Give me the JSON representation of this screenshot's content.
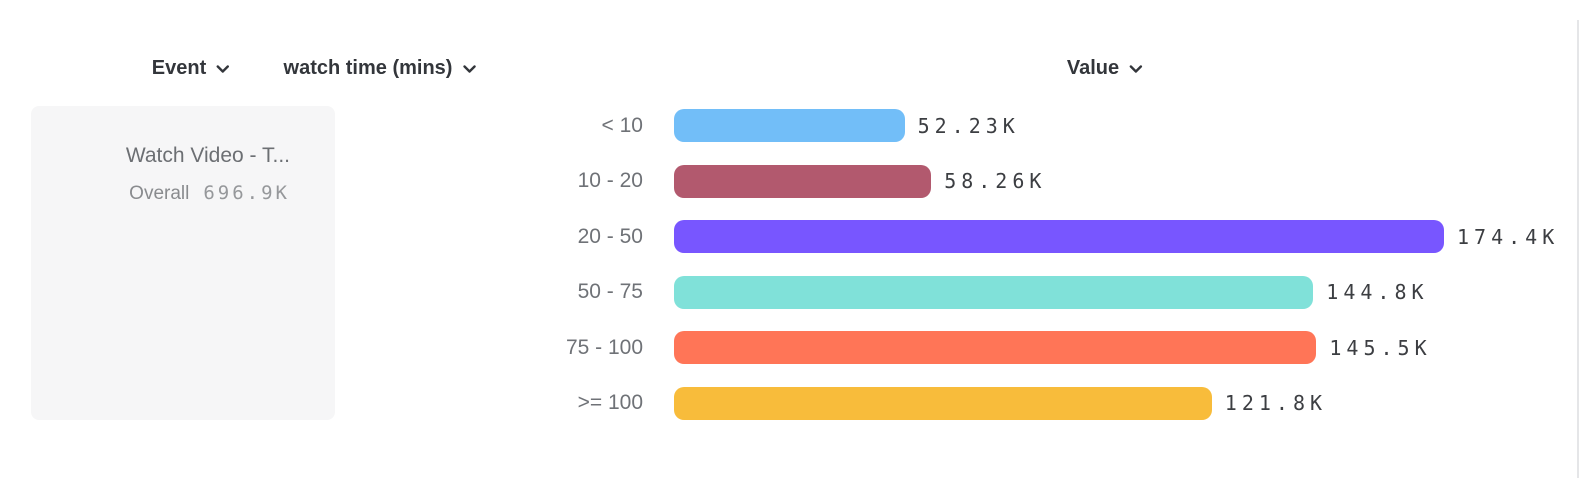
{
  "header": {
    "columns": [
      {
        "id": "event",
        "label": "Event"
      },
      {
        "id": "breakdown",
        "label": "watch time (mins)"
      },
      {
        "id": "value",
        "label": "Value"
      }
    ]
  },
  "legend": {
    "event_name": "Watch Video - T...",
    "overall_label": "Overall",
    "overall_value": "696.9K"
  },
  "chart_data": {
    "type": "bar",
    "orientation": "horizontal",
    "title": "",
    "xlabel": "Value",
    "ylabel": "watch time (mins)",
    "categories": [
      "< 10",
      "10 - 20",
      "20 - 50",
      "50 - 75",
      "75 - 100",
      ">= 100"
    ],
    "values": [
      52230,
      58260,
      174400,
      144800,
      145500,
      121800
    ],
    "value_labels": [
      "52.23K",
      "58.26K",
      "174.4K",
      "144.8K",
      "145.5K",
      "121.8K"
    ],
    "bar_colors": [
      "#72BEF8",
      "#B2596E",
      "#7856FF",
      "#80E1D9",
      "#FF7557",
      "#F8BC3B"
    ],
    "max_value": 174400,
    "legend_position": "left",
    "grid": false
  },
  "colors": {
    "background": "#FFFFFF",
    "header_text": "#33363B",
    "category_label": "#6F7277",
    "value_label": "#3C3E42",
    "panel_bg": "#F6F6F7",
    "panel_title": "#6C6F73",
    "overall_label": "#898B8E",
    "overall_value": "#96989B",
    "divider": "#E5E6E8"
  }
}
